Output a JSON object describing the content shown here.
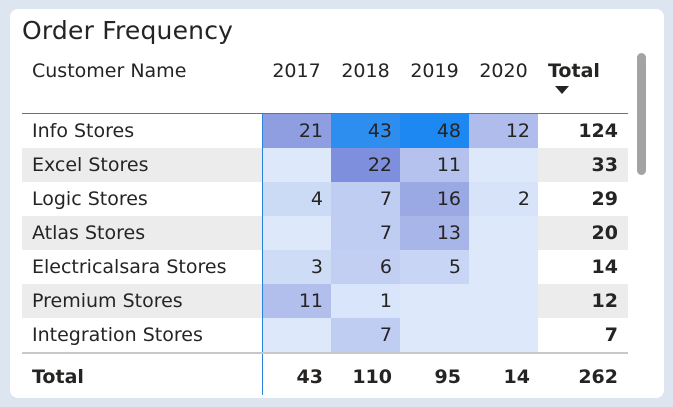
{
  "title": "Order Frequency",
  "columns": {
    "name": "Customer Name",
    "years": [
      "2017",
      "2018",
      "2019",
      "2020"
    ],
    "total": "Total"
  },
  "sort": {
    "column": "Total",
    "direction": "descending"
  },
  "rows": [
    {
      "name": "Info Stores",
      "values": [
        "21",
        "43",
        "48",
        "12"
      ],
      "total": "124",
      "colors": [
        "#8f9ee0",
        "#2e8ef0",
        "#1e88f2",
        "#b0bcec"
      ]
    },
    {
      "name": "Excel Stores",
      "values": [
        "",
        "22",
        "11",
        ""
      ],
      "total": "33",
      "colors": [
        "#dde9fb",
        "#7e8fdd",
        "#b6c2ee",
        "#dde9fb"
      ]
    },
    {
      "name": "Logic Stores",
      "values": [
        "4",
        "7",
        "16",
        "2"
      ],
      "total": "29",
      "colors": [
        "#cbdaf5",
        "#bfcdf2",
        "#9aa9e3",
        "#d6e3f8"
      ]
    },
    {
      "name": "Atlas Stores",
      "values": [
        "",
        "7",
        "13",
        ""
      ],
      "total": "20",
      "colors": [
        "#dde9fb",
        "#bfcdf2",
        "#a8b5e8",
        "#dde9fb"
      ]
    },
    {
      "name": "Electricalsara Stores",
      "values": [
        "3",
        "6",
        "5",
        ""
      ],
      "total": "14",
      "colors": [
        "#cfdcf6",
        "#c2cff2",
        "#c8d5f4",
        "#dde9fb"
      ]
    },
    {
      "name": "Premium Stores",
      "values": [
        "11",
        "1",
        "",
        ""
      ],
      "total": "12",
      "colors": [
        "#b2beec",
        "#d9e5fa",
        "#dde9fb",
        "#dde9fb"
      ]
    },
    {
      "name": "Integration Stores",
      "values": [
        "",
        "7",
        "",
        ""
      ],
      "total": "7",
      "colors": [
        "#dde9fb",
        "#bfcdf2",
        "#dde9fb",
        "#dde9fb"
      ]
    }
  ],
  "totals": {
    "label": "Total",
    "values": [
      "43",
      "110",
      "95",
      "14"
    ],
    "grand": "262"
  }
}
